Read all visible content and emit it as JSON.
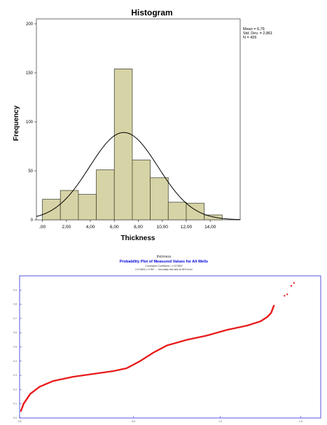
{
  "chart_data": [
    {
      "type": "bar",
      "title": "Histogram",
      "xlabel": "Thickness",
      "ylabel": "Frequency",
      "bin_edges": [
        0,
        1.5,
        3,
        4.5,
        6,
        7.5,
        9,
        10.5,
        12,
        13.5,
        15
      ],
      "values": [
        21,
        30,
        26,
        51,
        154,
        61,
        43,
        18,
        17,
        5
      ],
      "xticks": [
        ",00",
        "2,00",
        "4,00",
        "6,00",
        "8,00",
        "10,00",
        "12,00",
        "14,00"
      ],
      "xtick_values": [
        0,
        2,
        4,
        6,
        8,
        10,
        12,
        14
      ],
      "yticks": [
        "0",
        "50",
        "100",
        "150",
        "200"
      ],
      "ylim": [
        0,
        205
      ],
      "xlim": [
        -0.5,
        16.5
      ],
      "normal_curve": {
        "mean": 6.79,
        "sd": 2.861,
        "n": 426,
        "bin_width": 1.5
      },
      "stats_lines": [
        "Mean = 6,79",
        "Std. Dev. = 2,861",
        "N = 426"
      ],
      "colors": {
        "bar": "#d6d3a6",
        "bar_edge": "#4a4a3a",
        "curve": "#000000"
      }
    },
    {
      "type": "scatter",
      "header": "thickness",
      "title": "Probability Plot of Measured Values for All Wells",
      "subtitle_lines": [
        "Correlation Coefficient = 0.974802",
        "0.974802 ≥ 0.957 → Normality test fails at 95% level"
      ],
      "xlabel": "",
      "ylabel": "",
      "xlim": [
        0,
        2.25
      ],
      "ylim": [
        0,
        1
      ],
      "xticks": [
        "0.5",
        "0.5",
        "1.0",
        "1.5"
      ],
      "xtick_values": [
        0,
        0.85,
        1.5,
        2.1
      ],
      "yticks": [
        "0.0",
        "0.1",
        "0.2",
        "0.3",
        "0.4",
        "0.5",
        "0.6",
        "0.7",
        "0.8",
        "0.9"
      ],
      "ytick_values": [
        0.0,
        0.1,
        0.2,
        0.3,
        0.4,
        0.5,
        0.6,
        0.7,
        0.8,
        0.9
      ],
      "curve_points": [
        [
          0.01,
          0.05
        ],
        [
          0.03,
          0.1
        ],
        [
          0.08,
          0.17
        ],
        [
          0.15,
          0.22
        ],
        [
          0.25,
          0.26
        ],
        [
          0.4,
          0.29
        ],
        [
          0.55,
          0.31
        ],
        [
          0.7,
          0.33
        ],
        [
          0.8,
          0.35
        ],
        [
          0.9,
          0.4
        ],
        [
          1.0,
          0.46
        ],
        [
          1.1,
          0.51
        ],
        [
          1.25,
          0.55
        ],
        [
          1.4,
          0.58
        ],
        [
          1.55,
          0.62
        ],
        [
          1.7,
          0.65
        ],
        [
          1.8,
          0.68
        ],
        [
          1.85,
          0.71
        ],
        [
          1.88,
          0.74
        ],
        [
          1.9,
          0.79
        ]
      ],
      "outlier_points": [
        [
          1.98,
          0.86
        ],
        [
          2.0,
          0.87
        ],
        [
          2.03,
          0.93
        ],
        [
          2.05,
          0.95
        ]
      ],
      "n_points": 426,
      "colors": {
        "points": "#e81b1b",
        "frame": "#2a2ad8",
        "title": "#0000dd"
      }
    }
  ]
}
